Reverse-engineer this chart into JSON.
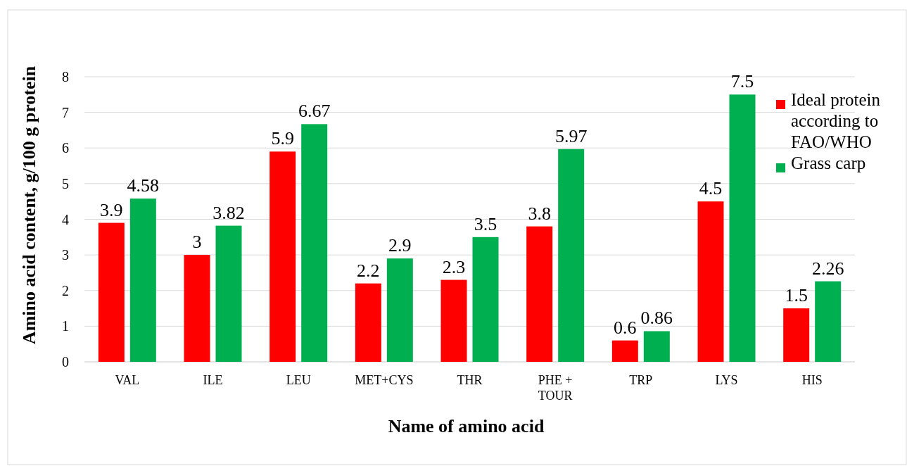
{
  "chart_data": {
    "type": "bar",
    "xlabel": "Name of amino acid",
    "ylabel": "Amino acid content,  g/100 g protein",
    "categories": [
      "VAL",
      "ILE",
      "LEU",
      "MET+CYS",
      "THR",
      "PHE + TOUR",
      "TRP",
      "LYS",
      "HIS"
    ],
    "series": [
      {
        "name": "Ideal protein according to FAO/WHO",
        "color": "#ff0000",
        "values": [
          3.9,
          3,
          5.9,
          2.2,
          2.3,
          3.8,
          0.6,
          4.5,
          1.5
        ]
      },
      {
        "name": "Grass carp",
        "color": "#00b050",
        "values": [
          4.58,
          3.82,
          6.67,
          2.9,
          3.5,
          5.97,
          0.86,
          7.5,
          2.26
        ]
      }
    ],
    "ylim": [
      0,
      8
    ],
    "yticks": [
      0,
      1,
      2,
      3,
      4,
      5,
      6,
      7,
      8
    ],
    "grid": "y",
    "legend": "right",
    "data_labels": true
  }
}
